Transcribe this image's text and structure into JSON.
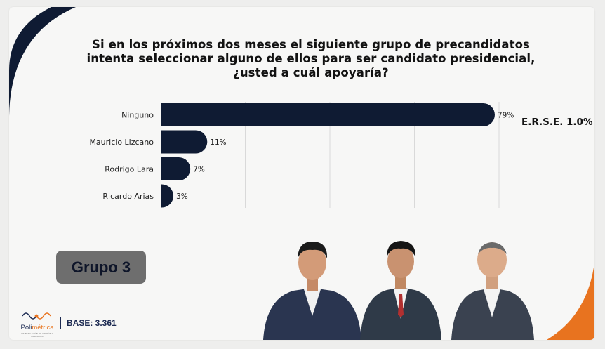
{
  "chart_data": {
    "type": "bar",
    "orientation": "horizontal",
    "title": "Si en los próximos dos meses el siguiente grupo de precandidatos intenta seleccionar alguno de ellos para ser candidato presidencial, ¿usted a cuál apoyaría?",
    "title_lines": [
      "Si en los próximos dos meses el siguiente grupo de precandidatos",
      "intenta seleccionar alguno de ellos para ser candidato presidencial,",
      "¿usted a cuál apoyaría?"
    ],
    "categories": [
      "Ninguno",
      "Mauricio Lizcano",
      "Rodrigo Lara",
      "Ricardo Arias"
    ],
    "values": [
      79,
      11,
      7,
      3
    ],
    "value_labels": [
      "79%",
      "11%",
      "7%",
      "3%"
    ],
    "unit": "%",
    "xlim": [
      0,
      80
    ],
    "grid": true,
    "bar_color": "#0f1b33"
  },
  "annotation": "E.R.S.E. 1.0%",
  "group_label": "Grupo 3",
  "footer": {
    "logo_text_main": "Poli",
    "logo_text_accent": "métrica",
    "logo_tagline": "INVESTIGACIÓN DE OPINIÓN Y MERCADOS",
    "base_label": "BASE: 3.361"
  },
  "colors": {
    "navy": "#0f1b33",
    "brand_navy": "#1c2a52",
    "orange": "#e8731f",
    "badge_gray": "#6e6e6e"
  }
}
